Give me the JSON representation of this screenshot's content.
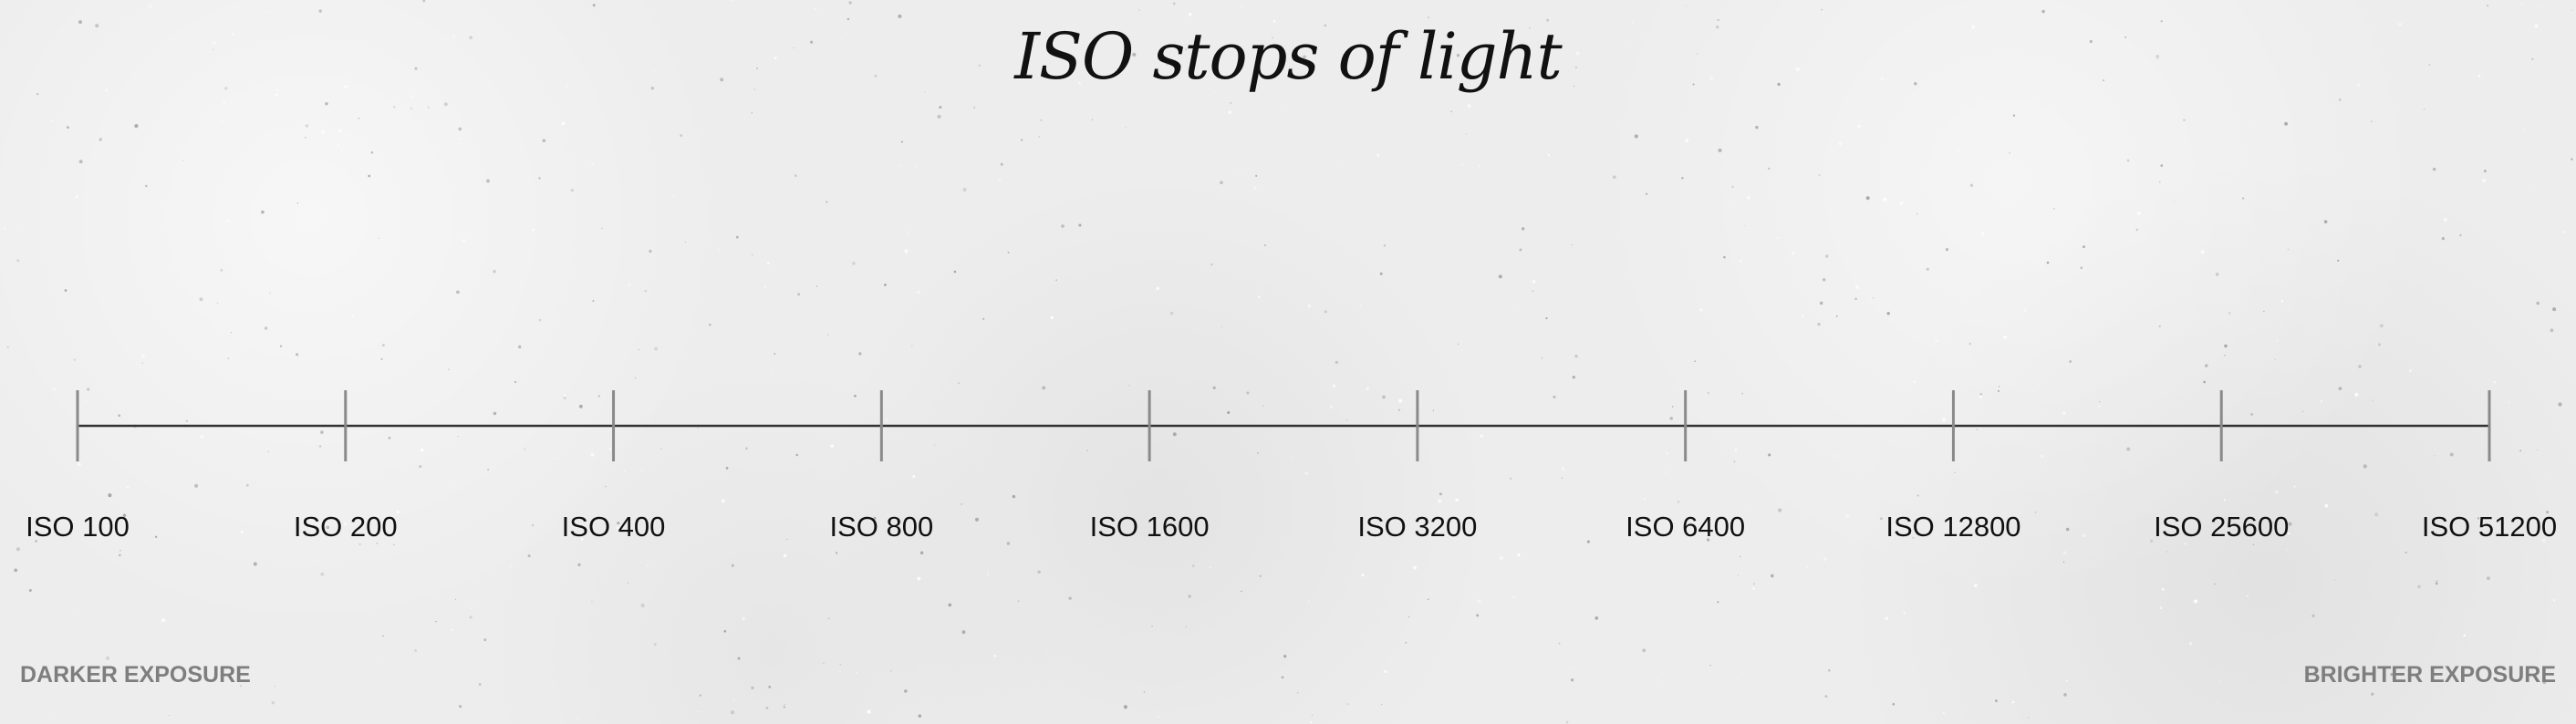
{
  "title": "ISO stops of light",
  "stops": [
    "ISO 100",
    "ISO 200",
    "ISO 400",
    "ISO 800",
    "ISO 1600",
    "ISO 3200",
    "ISO 6400",
    "ISO 12800",
    "ISO 25600",
    "ISO 51200"
  ],
  "labels": {
    "left": "DARKER EXPOSURE",
    "right": "BRIGHTER EXPOSURE"
  },
  "colors": {
    "background": "#ededed",
    "line": "#333333",
    "tick": "#8a8a8a",
    "text": "#111111",
    "end_label": "#7e7e7e"
  }
}
